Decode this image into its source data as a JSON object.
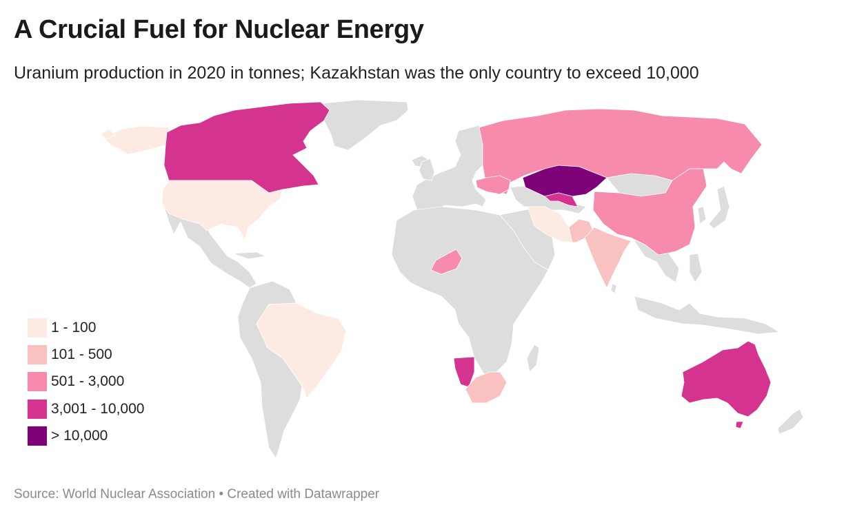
{
  "title": "A Crucial Fuel for Nuclear Energy",
  "subtitle": "Uranium production in 2020 in tonnes; Kazakhstan was the only country to exceed 10,000",
  "legend": [
    {
      "label": "1 - 100",
      "color": "#fdebe3"
    },
    {
      "label": "101 - 500",
      "color": "#f9c1bf"
    },
    {
      "label": "501 - 3,000",
      "color": "#f68bac"
    },
    {
      "label": "3,001 - 10,000",
      "color": "#d4348f"
    },
    {
      "label": "> 10,000",
      "color": "#7d0277"
    }
  ],
  "no_data_color": "#dddddd",
  "source": "Source: World Nuclear Association • Created with Datawrapper",
  "regions": [
    {
      "name": "Canada",
      "category": "3,001 - 10,000"
    },
    {
      "name": "Kazakhstan",
      "category": "> 10,000"
    },
    {
      "name": "Uzbekistan",
      "category": "3,001 - 10,000"
    },
    {
      "name": "Namibia",
      "category": "3,001 - 10,000"
    },
    {
      "name": "Australia",
      "category": "3,001 - 10,000"
    },
    {
      "name": "Russia",
      "category": "501 - 3,000"
    },
    {
      "name": "China",
      "category": "501 - 3,000"
    },
    {
      "name": "Ukraine",
      "category": "501 - 3,000"
    },
    {
      "name": "Niger",
      "category": "501 - 3,000"
    },
    {
      "name": "India",
      "category": "101 - 500"
    },
    {
      "name": "Pakistan",
      "category": "101 - 500"
    },
    {
      "name": "South Africa",
      "category": "101 - 500"
    },
    {
      "name": "United States",
      "category": "1 - 100"
    },
    {
      "name": "Brazil",
      "category": "1 - 100"
    },
    {
      "name": "Iran",
      "category": "1 - 100"
    },
    {
      "name": "Alaska",
      "category": "1 - 100"
    }
  ]
}
